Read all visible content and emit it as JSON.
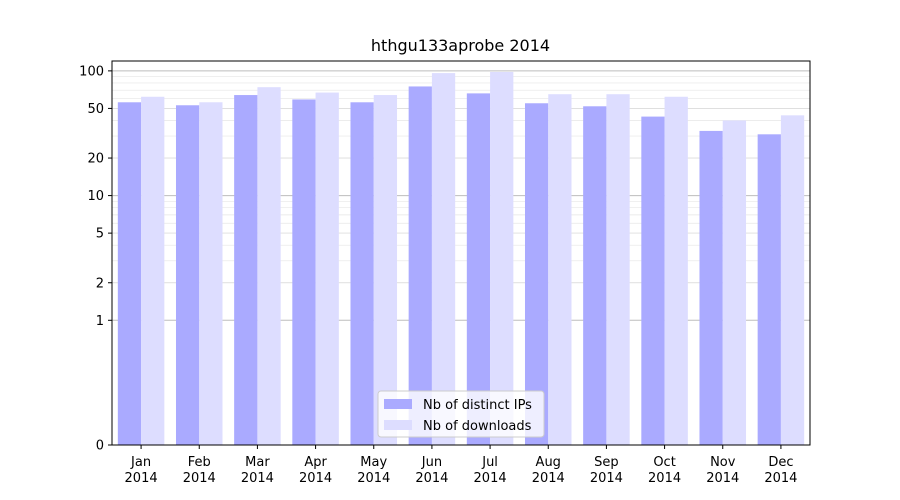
{
  "chart_data": {
    "type": "bar",
    "title": "hthgu133aprobe 2014",
    "xlabel": "",
    "ylabel": "",
    "yscale": "symlog",
    "ylim": [
      0,
      120
    ],
    "ytick_values": [
      0,
      1,
      2,
      5,
      10,
      20,
      50,
      100
    ],
    "ytick_labels": [
      "0",
      "1",
      "2",
      "5",
      "10",
      "20",
      "50",
      "100"
    ],
    "grid": true,
    "legend_position": "bottom-center",
    "categories": [
      "Jan\n2014",
      "Feb\n2014",
      "Mar\n2014",
      "Apr\n2014",
      "May\n2014",
      "Jun\n2014",
      "Jul\n2014",
      "Aug\n2014",
      "Sep\n2014",
      "Oct\n2014",
      "Nov\n2014",
      "Dec\n2014"
    ],
    "series": [
      {
        "name": "Nb of distinct IPs",
        "color": "#aaaaff",
        "values": [
          56,
          53,
          64,
          59,
          56,
          75,
          66,
          55,
          52,
          43,
          33,
          31
        ]
      },
      {
        "name": "Nb of downloads",
        "color": "#ddddff",
        "values": [
          62,
          56,
          74,
          67,
          64,
          96,
          98,
          65,
          65,
          62,
          40,
          44
        ]
      }
    ]
  }
}
